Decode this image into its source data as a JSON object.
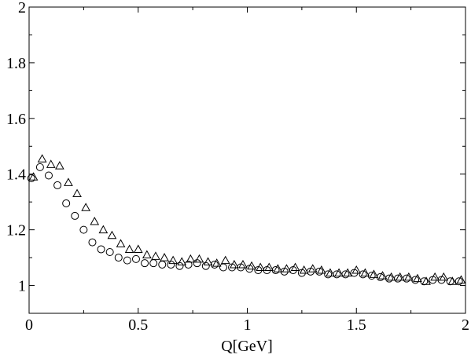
{
  "chart_data": {
    "type": "scatter",
    "title": "",
    "xlabel": "Q[GeV]",
    "ylabel": "",
    "xlim": [
      0,
      2
    ],
    "ylim": [
      0.9,
      2
    ],
    "grid": false,
    "x_ticks": [
      0,
      0.5,
      1,
      1.5,
      2
    ],
    "x_tick_labels": [
      "0",
      "0.5",
      "1",
      "1.5",
      "2"
    ],
    "y_ticks": [
      1,
      1.2,
      1.4,
      1.6,
      1.8,
      2
    ],
    "y_tick_labels": [
      "1",
      "1.2",
      "1.4",
      "1.6",
      "1.8",
      "2"
    ],
    "series": [
      {
        "marker": "triangle",
        "color": "#000000",
        "x": [
          0.02,
          0.06,
          0.1,
          0.14,
          0.18,
          0.22,
          0.26,
          0.3,
          0.34,
          0.38,
          0.42,
          0.46,
          0.5,
          0.54,
          0.58,
          0.62,
          0.66,
          0.7,
          0.74,
          0.78,
          0.82,
          0.86,
          0.9,
          0.94,
          0.98,
          1.02,
          1.06,
          1.1,
          1.14,
          1.18,
          1.22,
          1.26,
          1.3,
          1.34,
          1.38,
          1.42,
          1.46,
          1.5,
          1.54,
          1.58,
          1.62,
          1.66,
          1.7,
          1.74,
          1.78,
          1.82,
          1.86,
          1.9,
          1.94,
          1.98
        ],
        "y": [
          1.39,
          1.455,
          1.435,
          1.43,
          1.37,
          1.33,
          1.28,
          1.23,
          1.2,
          1.18,
          1.15,
          1.13,
          1.13,
          1.11,
          1.105,
          1.1,
          1.09,
          1.085,
          1.095,
          1.095,
          1.085,
          1.08,
          1.09,
          1.075,
          1.075,
          1.07,
          1.065,
          1.065,
          1.06,
          1.06,
          1.065,
          1.055,
          1.06,
          1.055,
          1.045,
          1.045,
          1.045,
          1.055,
          1.045,
          1.04,
          1.035,
          1.03,
          1.03,
          1.03,
          1.025,
          1.015,
          1.03,
          1.03,
          1.015,
          1.02
        ]
      },
      {
        "marker": "circle",
        "color": "#000000",
        "x": [
          0.01,
          0.05,
          0.09,
          0.13,
          0.17,
          0.21,
          0.25,
          0.29,
          0.33,
          0.37,
          0.41,
          0.45,
          0.49,
          0.53,
          0.57,
          0.61,
          0.65,
          0.69,
          0.73,
          0.77,
          0.81,
          0.85,
          0.89,
          0.93,
          0.97,
          1.01,
          1.05,
          1.09,
          1.13,
          1.17,
          1.21,
          1.25,
          1.29,
          1.33,
          1.37,
          1.41,
          1.45,
          1.49,
          1.53,
          1.57,
          1.61,
          1.65,
          1.69,
          1.73,
          1.77,
          1.81,
          1.85,
          1.89,
          1.93,
          1.97
        ],
        "y": [
          1.385,
          1.425,
          1.395,
          1.36,
          1.295,
          1.25,
          1.2,
          1.155,
          1.13,
          1.12,
          1.1,
          1.09,
          1.095,
          1.08,
          1.08,
          1.075,
          1.075,
          1.07,
          1.075,
          1.08,
          1.07,
          1.075,
          1.065,
          1.065,
          1.065,
          1.06,
          1.055,
          1.055,
          1.055,
          1.05,
          1.055,
          1.045,
          1.05,
          1.05,
          1.04,
          1.04,
          1.04,
          1.045,
          1.04,
          1.035,
          1.03,
          1.025,
          1.025,
          1.025,
          1.02,
          1.015,
          1.02,
          1.02,
          1.015,
          1.015
        ]
      }
    ]
  }
}
